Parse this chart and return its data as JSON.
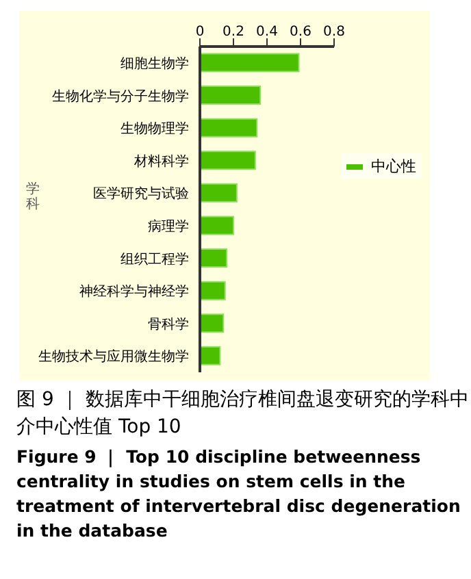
{
  "chart_data": {
    "type": "bar",
    "orientation": "horizontal",
    "categories": [
      "细胞生物学",
      "生物化学与分子生物学",
      "生物物理学",
      "材料科学",
      "医学研究与试验",
      "病理学",
      "组织工程学",
      "神经科学与神经学",
      "骨科学",
      "生物技术与应用微生物学"
    ],
    "series": [
      {
        "name": "中心性",
        "color": "#4cc000",
        "values": [
          0.59,
          0.36,
          0.34,
          0.33,
          0.22,
          0.2,
          0.16,
          0.15,
          0.14,
          0.12
        ]
      }
    ],
    "xlim": [
      0,
      0.8
    ],
    "xticks": [
      0,
      0.2,
      0.4,
      0.6,
      0.8
    ],
    "ylabel": "学科",
    "grid": false,
    "legend": "right",
    "annotations": [
      "图 9 ｜ 数据库中干细胞治疗椎间盘退变研究的学科中介中心性值 Top 10",
      "Figure 9 ｜ Top 10 discipline betweenness centrality in studies on stem cells in the treatment of intervertebral disc degeneration in the database"
    ]
  }
}
